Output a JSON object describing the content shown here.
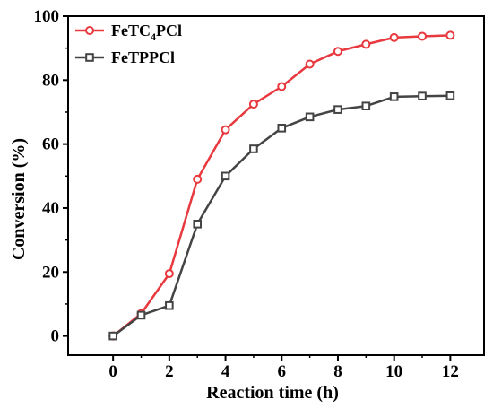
{
  "chart_data": {
    "type": "line",
    "xlabel": "Reaction time (h)",
    "ylabel": "Conversion (%)",
    "xlim": [
      -1.6,
      13.2
    ],
    "ylim": [
      -6,
      100
    ],
    "xticks": [
      0,
      2,
      4,
      6,
      8,
      10,
      12
    ],
    "yticks": [
      0,
      20,
      40,
      60,
      80,
      100
    ],
    "grid": false,
    "legend_position": "top-left",
    "series": [
      {
        "name": "FeTC4PCl",
        "legend_main": "FeTC",
        "legend_sub": "4",
        "legend_tail": "PCl",
        "color": "#e8393f",
        "marker": "circle",
        "x": [
          0,
          1,
          2,
          3,
          4,
          5,
          6,
          7,
          8,
          9,
          10,
          11,
          12
        ],
        "y": [
          0,
          7,
          19.5,
          49,
          64.5,
          72.5,
          78,
          85,
          89,
          91.2,
          93.3,
          93.7,
          94
        ]
      },
      {
        "name": "FeTPPCl",
        "color": "#444444",
        "marker": "square",
        "x": [
          0,
          1,
          2,
          3,
          4,
          5,
          6,
          7,
          8,
          9,
          10,
          11,
          12
        ],
        "y": [
          0,
          6.5,
          9.5,
          35,
          50,
          58.5,
          65,
          68.5,
          70.8,
          71.9,
          74.8,
          75,
          75.1
        ]
      }
    ]
  }
}
